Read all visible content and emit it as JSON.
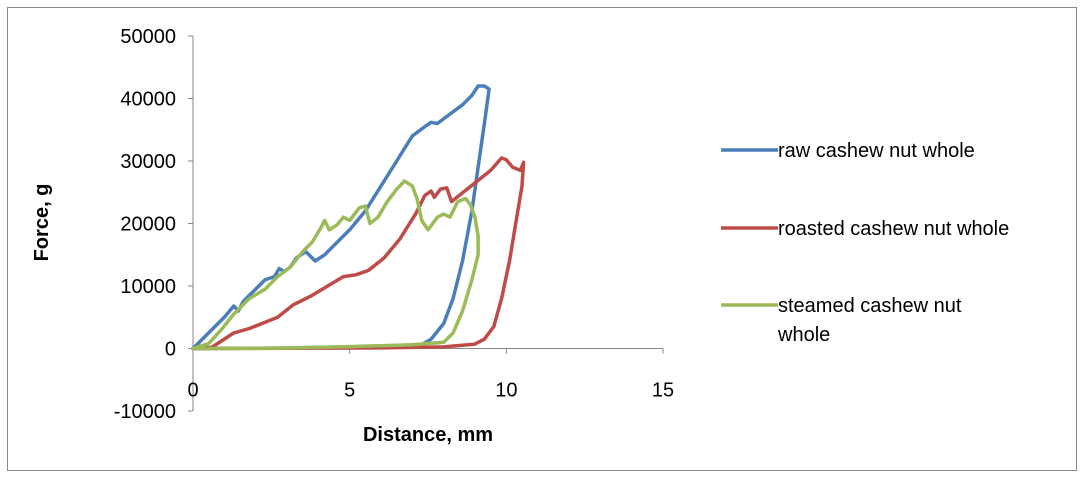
{
  "chart_data": {
    "type": "line",
    "title": "",
    "xlabel": "Distance, mm",
    "ylabel": "Force, g",
    "xlim": [
      0,
      15
    ],
    "ylim": [
      -10000,
      50000
    ],
    "x_ticks": [
      "0",
      "5",
      "10",
      "15"
    ],
    "y_ticks": [
      "-10000",
      "0",
      "10000",
      "20000",
      "30000",
      "40000",
      "50000"
    ],
    "grid": false,
    "legend_position": "right",
    "series": [
      {
        "name": "raw cashew nut whole",
        "color": "#4a7ebb",
        "points": [
          [
            0,
            0
          ],
          [
            0.3,
            1500
          ],
          [
            0.7,
            3500
          ],
          [
            1.0,
            5000
          ],
          [
            1.2,
            6200
          ],
          [
            1.3,
            6800
          ],
          [
            1.45,
            6000
          ],
          [
            1.6,
            7500
          ],
          [
            2.0,
            9500
          ],
          [
            2.3,
            11000
          ],
          [
            2.6,
            11500
          ],
          [
            2.75,
            12800
          ],
          [
            2.9,
            12300
          ],
          [
            3.1,
            13000
          ],
          [
            3.3,
            14500
          ],
          [
            3.6,
            15500
          ],
          [
            3.9,
            14000
          ],
          [
            4.2,
            15000
          ],
          [
            4.6,
            17000
          ],
          [
            5.0,
            19000
          ],
          [
            5.5,
            22000
          ],
          [
            6.0,
            26000
          ],
          [
            6.5,
            30000
          ],
          [
            7.0,
            34000
          ],
          [
            7.4,
            35500
          ],
          [
            7.6,
            36200
          ],
          [
            7.8,
            36000
          ],
          [
            8.2,
            37500
          ],
          [
            8.6,
            39000
          ],
          [
            8.9,
            40500
          ],
          [
            9.1,
            42000
          ],
          [
            9.3,
            42000
          ],
          [
            9.45,
            41500
          ],
          [
            9.3,
            36000
          ],
          [
            9.1,
            29000
          ],
          [
            8.9,
            22000
          ],
          [
            8.6,
            14000
          ],
          [
            8.3,
            8000
          ],
          [
            8.0,
            4000
          ],
          [
            7.6,
            1500
          ],
          [
            7.3,
            600
          ],
          [
            6.0,
            400
          ],
          [
            5.0,
            250
          ],
          [
            3.0,
            80
          ],
          [
            1.0,
            20
          ],
          [
            0,
            0
          ]
        ]
      },
      {
        "name": "roasted cashew nut whole",
        "color": "#be4b48",
        "points": [
          [
            0,
            0
          ],
          [
            0.6,
            200
          ],
          [
            1.0,
            1500
          ],
          [
            1.3,
            2500
          ],
          [
            1.8,
            3200
          ],
          [
            2.3,
            4200
          ],
          [
            2.7,
            5000
          ],
          [
            3.2,
            7000
          ],
          [
            3.8,
            8500
          ],
          [
            4.3,
            10000
          ],
          [
            4.8,
            11500
          ],
          [
            5.2,
            11800
          ],
          [
            5.6,
            12500
          ],
          [
            6.1,
            14500
          ],
          [
            6.6,
            17500
          ],
          [
            7.1,
            21500
          ],
          [
            7.4,
            24500
          ],
          [
            7.6,
            25200
          ],
          [
            7.7,
            24200
          ],
          [
            7.9,
            25500
          ],
          [
            8.1,
            25700
          ],
          [
            8.25,
            23500
          ],
          [
            8.5,
            24500
          ],
          [
            9.0,
            26500
          ],
          [
            9.5,
            28500
          ],
          [
            9.85,
            30500
          ],
          [
            10.0,
            30200
          ],
          [
            10.2,
            29000
          ],
          [
            10.45,
            28500
          ],
          [
            10.55,
            29800
          ],
          [
            10.5,
            26000
          ],
          [
            10.3,
            20000
          ],
          [
            10.1,
            14000
          ],
          [
            9.85,
            8000
          ],
          [
            9.6,
            3500
          ],
          [
            9.3,
            1500
          ],
          [
            9.0,
            700
          ],
          [
            8.0,
            250
          ],
          [
            6.0,
            100
          ],
          [
            3.0,
            30
          ],
          [
            0,
            0
          ]
        ]
      },
      {
        "name": "steamed cashew nut whole",
        "color": "#9bbb59",
        "points": [
          [
            0,
            0
          ],
          [
            0.5,
            800
          ],
          [
            0.9,
            3000
          ],
          [
            1.3,
            5500
          ],
          [
            1.8,
            8000
          ],
          [
            2.3,
            9500
          ],
          [
            2.7,
            11500
          ],
          [
            3.1,
            13000
          ],
          [
            3.5,
            15500
          ],
          [
            3.8,
            17000
          ],
          [
            4.1,
            19500
          ],
          [
            4.2,
            20500
          ],
          [
            4.35,
            19000
          ],
          [
            4.6,
            19800
          ],
          [
            4.8,
            21000
          ],
          [
            5.0,
            20500
          ],
          [
            5.3,
            22500
          ],
          [
            5.5,
            22800
          ],
          [
            5.65,
            20000
          ],
          [
            5.9,
            21000
          ],
          [
            6.2,
            23500
          ],
          [
            6.5,
            25500
          ],
          [
            6.75,
            26800
          ],
          [
            7.0,
            26000
          ],
          [
            7.15,
            24000
          ],
          [
            7.3,
            20500
          ],
          [
            7.5,
            19000
          ],
          [
            7.8,
            21000
          ],
          [
            8.0,
            21500
          ],
          [
            8.2,
            21000
          ],
          [
            8.45,
            23500
          ],
          [
            8.7,
            24000
          ],
          [
            8.85,
            23000
          ],
          [
            9.0,
            21000
          ],
          [
            9.1,
            18000
          ],
          [
            9.1,
            15000
          ],
          [
            8.9,
            11000
          ],
          [
            8.6,
            6000
          ],
          [
            8.3,
            2500
          ],
          [
            8.0,
            1000
          ],
          [
            7.0,
            600
          ],
          [
            5.0,
            300
          ],
          [
            3.0,
            80
          ],
          [
            1.0,
            20
          ],
          [
            0,
            0
          ]
        ]
      }
    ]
  }
}
